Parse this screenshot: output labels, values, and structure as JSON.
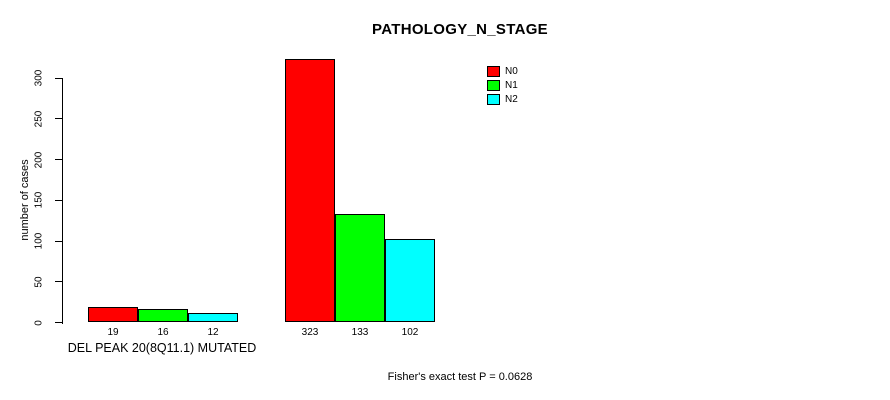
{
  "chart_data": {
    "type": "bar",
    "title": "PATHOLOGY_N_STAGE",
    "xlabel": "",
    "ylabel": "number of cases",
    "ylim": [
      0,
      300
    ],
    "yticks": [
      0,
      50,
      100,
      150,
      200,
      250,
      300
    ],
    "grid": false,
    "legend_position": "top-right-inside",
    "categories": [
      "DEL PEAK 20(8Q11.1) MUTATED",
      ""
    ],
    "series": [
      {
        "name": "N0",
        "color": "#ff0000",
        "values": [
          19,
          323
        ]
      },
      {
        "name": "N1",
        "color": "#00ff00",
        "values": [
          16,
          133
        ]
      },
      {
        "name": "N2",
        "color": "#00ffff",
        "values": [
          12,
          102
        ]
      }
    ],
    "bar_value_labels": [
      [
        19,
        16,
        12
      ],
      [
        323,
        133,
        102
      ]
    ],
    "annotation": "Fisher's exact test P = 0.0628",
    "axis_color": "#000000",
    "background_color": "#ffffff"
  }
}
